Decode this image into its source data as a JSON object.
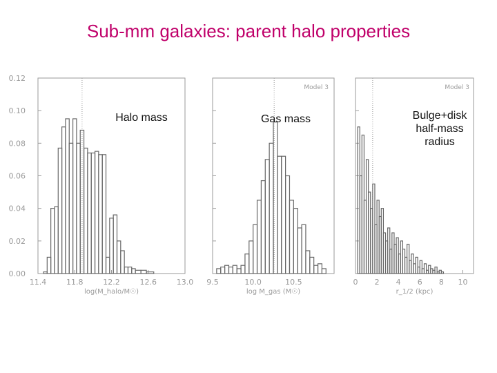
{
  "slide": {
    "title": "Sub-mm galaxies: parent halo properties"
  },
  "colors": {
    "title": "#c0006a",
    "axis": "#9a9a9a",
    "line": "#666666",
    "annotation": "#111111"
  },
  "chart_data": [
    {
      "type": "histogram",
      "annotation": [
        "Halo mass"
      ],
      "model_label": "",
      "xlabel": "log(M_halo/M☉)",
      "xlim": [
        11.4,
        13.0
      ],
      "ylim": [
        0,
        0.12
      ],
      "xticks": [
        "11.4",
        "11.8",
        "12.2",
        "12.6",
        "13.0"
      ],
      "yticks": [
        "0.00",
        "0.02",
        "0.04",
        "0.06",
        "0.08",
        "0.10",
        "0.12"
      ],
      "vline": 11.88,
      "bins": [
        {
          "x0": 11.46,
          "x1": 11.5,
          "y": 0.001
        },
        {
          "x0": 11.5,
          "x1": 11.54,
          "y": 0.01
        },
        {
          "x0": 11.54,
          "x1": 11.58,
          "y": 0.04
        },
        {
          "x0": 11.58,
          "x1": 11.62,
          "y": 0.041
        },
        {
          "x0": 11.62,
          "x1": 11.66,
          "y": 0.077
        },
        {
          "x0": 11.66,
          "x1": 11.7,
          "y": 0.09
        },
        {
          "x0": 11.7,
          "x1": 11.74,
          "y": 0.095
        },
        {
          "x0": 11.74,
          "x1": 11.78,
          "y": 0.08
        },
        {
          "x0": 11.78,
          "x1": 11.82,
          "y": 0.095
        },
        {
          "x0": 11.82,
          "x1": 11.86,
          "y": 0.08
        },
        {
          "x0": 11.86,
          "x1": 11.9,
          "y": 0.088
        },
        {
          "x0": 11.9,
          "x1": 11.94,
          "y": 0.077
        },
        {
          "x0": 11.94,
          "x1": 11.98,
          "y": 0.074
        },
        {
          "x0": 11.98,
          "x1": 12.02,
          "y": 0.074
        },
        {
          "x0": 12.02,
          "x1": 12.06,
          "y": 0.075
        },
        {
          "x0": 12.06,
          "x1": 12.1,
          "y": 0.073
        },
        {
          "x0": 12.1,
          "x1": 12.14,
          "y": 0.073
        },
        {
          "x0": 12.14,
          "x1": 12.18,
          "y": 0.01
        },
        {
          "x0": 12.18,
          "x1": 12.22,
          "y": 0.034
        },
        {
          "x0": 12.22,
          "x1": 12.26,
          "y": 0.036
        },
        {
          "x0": 12.26,
          "x1": 12.3,
          "y": 0.02
        },
        {
          "x0": 12.3,
          "x1": 12.34,
          "y": 0.014
        },
        {
          "x0": 12.34,
          "x1": 12.38,
          "y": 0.004
        },
        {
          "x0": 12.38,
          "x1": 12.42,
          "y": 0.004
        },
        {
          "x0": 12.42,
          "x1": 12.46,
          "y": 0.003
        },
        {
          "x0": 12.46,
          "x1": 12.52,
          "y": 0.002
        },
        {
          "x0": 12.52,
          "x1": 12.58,
          "y": 0.002
        },
        {
          "x0": 12.58,
          "x1": 12.66,
          "y": 0.001
        }
      ]
    },
    {
      "type": "histogram",
      "annotation": [
        "Gas mass"
      ],
      "model_label": "Model 3",
      "xlabel": "log M_gas (M☉)",
      "xlim": [
        9.5,
        11.0
      ],
      "ylim": [
        0,
        0.12
      ],
      "xticks": [
        "9.5",
        "10.0",
        "10.5"
      ],
      "yticks": [],
      "vline": 10.26,
      "bins": [
        {
          "x0": 9.55,
          "x1": 9.6,
          "y": 0.003
        },
        {
          "x0": 9.6,
          "x1": 9.65,
          "y": 0.004
        },
        {
          "x0": 9.65,
          "x1": 9.7,
          "y": 0.005
        },
        {
          "x0": 9.7,
          "x1": 9.75,
          "y": 0.004
        },
        {
          "x0": 9.75,
          "x1": 9.8,
          "y": 0.005
        },
        {
          "x0": 9.8,
          "x1": 9.85,
          "y": 0.003
        },
        {
          "x0": 9.85,
          "x1": 9.9,
          "y": 0.005
        },
        {
          "x0": 9.9,
          "x1": 9.95,
          "y": 0.012
        },
        {
          "x0": 9.95,
          "x1": 10.0,
          "y": 0.02
        },
        {
          "x0": 10.0,
          "x1": 10.05,
          "y": 0.03
        },
        {
          "x0": 10.05,
          "x1": 10.1,
          "y": 0.045
        },
        {
          "x0": 10.1,
          "x1": 10.15,
          "y": 0.057
        },
        {
          "x0": 10.15,
          "x1": 10.2,
          "y": 0.07
        },
        {
          "x0": 10.2,
          "x1": 10.25,
          "y": 0.08
        },
        {
          "x0": 10.25,
          "x1": 10.3,
          "y": 0.093
        },
        {
          "x0": 10.3,
          "x1": 10.35,
          "y": 0.072
        },
        {
          "x0": 10.35,
          "x1": 10.4,
          "y": 0.072
        },
        {
          "x0": 10.4,
          "x1": 10.45,
          "y": 0.06
        },
        {
          "x0": 10.45,
          "x1": 10.5,
          "y": 0.045
        },
        {
          "x0": 10.5,
          "x1": 10.55,
          "y": 0.04
        },
        {
          "x0": 10.55,
          "x1": 10.6,
          "y": 0.028
        },
        {
          "x0": 10.6,
          "x1": 10.65,
          "y": 0.03
        },
        {
          "x0": 10.65,
          "x1": 10.7,
          "y": 0.014
        },
        {
          "x0": 10.7,
          "x1": 10.75,
          "y": 0.01
        },
        {
          "x0": 10.75,
          "x1": 10.8,
          "y": 0.005
        },
        {
          "x0": 10.8,
          "x1": 10.85,
          "y": 0.006
        },
        {
          "x0": 10.85,
          "x1": 10.9,
          "y": 0.003
        }
      ]
    },
    {
      "type": "histogram",
      "annotation": [
        "Bulge+disk",
        "half-mass",
        "radius"
      ],
      "model_label": "Model 3",
      "xlabel": "r_1/2 (kpc)",
      "xlim": [
        0,
        11
      ],
      "ylim": [
        0,
        0.12
      ],
      "xticks": [
        "0",
        "2",
        "4",
        "6",
        "8",
        "10"
      ],
      "yticks": [],
      "vline": 1.6,
      "bins": [
        {
          "x0": 0.2,
          "x1": 0.4,
          "y": 0.09
        },
        {
          "x0": 0.4,
          "x1": 0.6,
          "y": 0.06
        },
        {
          "x0": 0.6,
          "x1": 0.8,
          "y": 0.085
        },
        {
          "x0": 0.8,
          "x1": 1.0,
          "y": 0.045
        },
        {
          "x0": 1.0,
          "x1": 1.2,
          "y": 0.07
        },
        {
          "x0": 1.2,
          "x1": 1.4,
          "y": 0.05
        },
        {
          "x0": 1.4,
          "x1": 1.6,
          "y": 0.04
        },
        {
          "x0": 1.6,
          "x1": 1.8,
          "y": 0.055
        },
        {
          "x0": 1.8,
          "x1": 2.0,
          "y": 0.03
        },
        {
          "x0": 2.0,
          "x1": 2.2,
          "y": 0.045
        },
        {
          "x0": 2.2,
          "x1": 2.4,
          "y": 0.035
        },
        {
          "x0": 2.4,
          "x1": 2.6,
          "y": 0.04
        },
        {
          "x0": 2.6,
          "x1": 2.8,
          "y": 0.025
        },
        {
          "x0": 2.8,
          "x1": 3.0,
          "y": 0.02
        },
        {
          "x0": 3.0,
          "x1": 3.2,
          "y": 0.028
        },
        {
          "x0": 3.2,
          "x1": 3.4,
          "y": 0.015
        },
        {
          "x0": 3.4,
          "x1": 3.6,
          "y": 0.025
        },
        {
          "x0": 3.6,
          "x1": 3.8,
          "y": 0.018
        },
        {
          "x0": 3.8,
          "x1": 4.0,
          "y": 0.022
        },
        {
          "x0": 4.0,
          "x1": 4.2,
          "y": 0.012
        },
        {
          "x0": 4.2,
          "x1": 4.4,
          "y": 0.02
        },
        {
          "x0": 4.4,
          "x1": 4.6,
          "y": 0.015
        },
        {
          "x0": 4.6,
          "x1": 4.8,
          "y": 0.01
        },
        {
          "x0": 4.8,
          "x1": 5.0,
          "y": 0.018
        },
        {
          "x0": 5.0,
          "x1": 5.2,
          "y": 0.008
        },
        {
          "x0": 5.2,
          "x1": 5.4,
          "y": 0.012
        },
        {
          "x0": 5.4,
          "x1": 5.6,
          "y": 0.006
        },
        {
          "x0": 5.6,
          "x1": 5.8,
          "y": 0.01
        },
        {
          "x0": 5.8,
          "x1": 6.0,
          "y": 0.004
        },
        {
          "x0": 6.0,
          "x1": 6.2,
          "y": 0.008
        },
        {
          "x0": 6.2,
          "x1": 6.4,
          "y": 0.003
        },
        {
          "x0": 6.4,
          "x1": 6.6,
          "y": 0.006
        },
        {
          "x0": 6.6,
          "x1": 6.8,
          "y": 0.002
        },
        {
          "x0": 6.8,
          "x1": 7.0,
          "y": 0.005
        },
        {
          "x0": 7.0,
          "x1": 7.2,
          "y": 0.003
        },
        {
          "x0": 7.2,
          "x1": 7.4,
          "y": 0.002
        },
        {
          "x0": 7.4,
          "x1": 7.6,
          "y": 0.004
        },
        {
          "x0": 7.6,
          "x1": 7.8,
          "y": 0.001
        },
        {
          "x0": 7.8,
          "x1": 8.0,
          "y": 0.002
        },
        {
          "x0": 8.0,
          "x1": 8.2,
          "y": 0.001
        }
      ]
    }
  ]
}
